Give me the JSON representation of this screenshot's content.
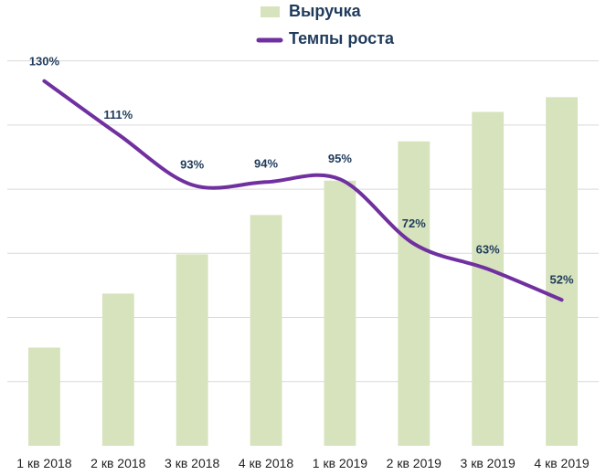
{
  "legend": {
    "bar_label": "Выручка",
    "line_label": "Темпы роста"
  },
  "colors": {
    "bar": "#d6e3bc",
    "line": "#7030a0",
    "grid": "#d9d9d9",
    "label": "#1f3b5c"
  },
  "chart_data": {
    "type": "bar",
    "title": "",
    "xlabel": "",
    "ylabel": "",
    "categories": [
      "1 кв 2018",
      "2 кв 2018",
      "3 кв 2018",
      "4 кв 2018",
      "1 кв 2019",
      "2 кв 2019",
      "3 кв 2019",
      "4 кв 2019"
    ],
    "grid": true,
    "legend_position": "top-center",
    "series": [
      {
        "name": "Выручка",
        "type": "bar",
        "values": [
          2.0,
          3.1,
          3.9,
          4.7,
          5.4,
          6.2,
          6.8,
          7.1
        ],
        "ylim": [
          0,
          8
        ]
      },
      {
        "name": "Темпы роста",
        "type": "line",
        "values": [
          130,
          111,
          93,
          94,
          95,
          72,
          63,
          52
        ],
        "labels": [
          "130%",
          "111%",
          "93%",
          "94%",
          "95%",
          "72%",
          "63%",
          "52%"
        ],
        "ylim": [
          0,
          140
        ],
        "smooth": true
      }
    ]
  }
}
